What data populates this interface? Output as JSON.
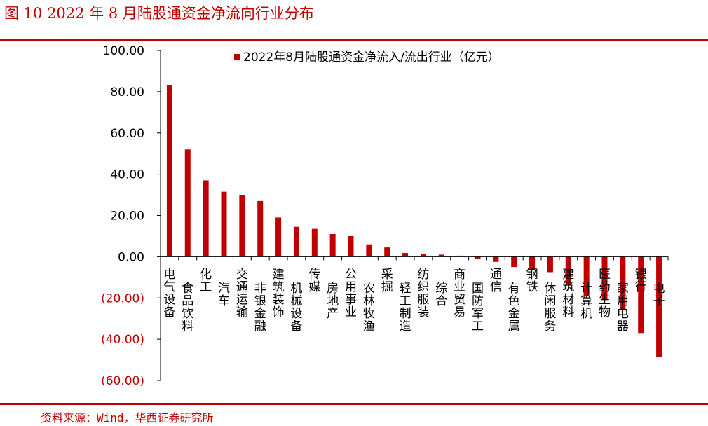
{
  "figure": {
    "title": "图 10   2022 年 8 月陆股通资金净流向行业分布",
    "source": "资料来源：Wind，华西证券研究所"
  },
  "colors": {
    "bar": "#c00000",
    "negative_tick": "#c00000",
    "axis": "#000000",
    "rule": "#c00000"
  },
  "chart_data": {
    "type": "bar",
    "title": "",
    "xlabel": "",
    "ylabel": "",
    "ylim": [
      -60,
      100
    ],
    "yticks": [
      100,
      80,
      60,
      40,
      20,
      0,
      -20,
      -40,
      -60
    ],
    "ytick_labels": [
      "100.00",
      "80.00",
      "60.00",
      "40.00",
      "20.00",
      "0.00",
      "(20.00)",
      "(40.00)",
      "(60.00)"
    ],
    "grid": false,
    "legend": "top",
    "categories": [
      "电气设备",
      "食品饮料",
      "化工",
      "汽车",
      "交通运输",
      "非银金融",
      "建筑装饰",
      "机械设备",
      "传媒",
      "房地产",
      "公用事业",
      "农林牧渔",
      "采掘",
      "轻工制造",
      "纺织服装",
      "综合",
      "商业贸易",
      "国防军工",
      "通信",
      "有色金属",
      "钢铁",
      "休闲服务",
      "建筑材料",
      "计算机",
      "医药生物",
      "家用电器",
      "银行",
      "电子"
    ],
    "series": [
      {
        "name": "2022年8月陆股通资金净流入/流出行业（亿元）",
        "values": [
          83,
          52,
          37,
          31.5,
          30,
          27,
          19,
          14.5,
          13.5,
          11,
          10,
          6,
          4.5,
          1.8,
          1.2,
          1.0,
          0.5,
          -1.2,
          -2.5,
          -5,
          -6.5,
          -7.5,
          -14,
          -19,
          -21,
          -26,
          -37,
          -48.5
        ]
      }
    ]
  }
}
